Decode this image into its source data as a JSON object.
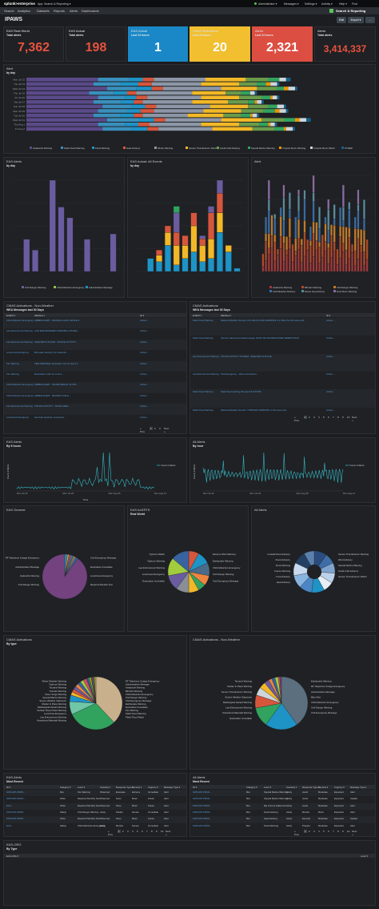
{
  "topbar": {
    "logo": "splunk>enterprise",
    "app_menu": "App: Search & Reporting ▾",
    "user": "Administrator ▾",
    "messages": "Messages ▾",
    "settings": "Settings ▾",
    "activity": "Activity ▾",
    "help": "Help ▾",
    "find": "Find"
  },
  "nav": {
    "items": [
      "Search",
      "Analytics",
      "Datasets",
      "Reports",
      "Alerts",
      "Dashboards"
    ],
    "app_name": "Search & Reporting"
  },
  "dashboard": {
    "title": "IPAWS",
    "edit": "Edit",
    "export": "Export ▾",
    "more": "..."
  },
  "kpis": [
    {
      "title": "EAS Real World",
      "sub": "Total alerts",
      "value": "7,362",
      "color": "#e8523f",
      "bg": ""
    },
    {
      "title": "EAS Actual",
      "sub": "Total alerts",
      "value": "198",
      "color": "#e8523f",
      "bg": ""
    },
    {
      "title": "EAS Actual",
      "sub": "Last 24 hours",
      "value": "1",
      "color": "#ffffff",
      "bg": "#1a88c7"
    },
    {
      "title": "CMAS Activations",
      "sub": "Last 24 hours",
      "value": "20",
      "color": "#ffffff",
      "bg": "#f1bf2f"
    },
    {
      "title": "Alerts",
      "sub": "Last 24 hours",
      "value": "2,321",
      "color": "#ffffff",
      "bg": "#dc4e41"
    },
    {
      "title": "Alerts",
      "sub": "Total alerts",
      "value": "3,414,337",
      "color": "#e8523f",
      "bg": ""
    }
  ],
  "alert_panel": {
    "title": "Alert",
    "sub": "by day",
    "legend": [
      "Avalanche Warning",
      "Flash Flood Warning",
      "Flood Warning",
      "Heat Advisory",
      "Winter Warning",
      "Severe Thunderstorm Warning",
      "Small Craft Advisory",
      "Special Marine Warning",
      "Tropical Storm Warning",
      "Tropical Storm Watch",
      "OTHER"
    ],
    "days": [
      "Mon Jul 22",
      "Tue Jul 23",
      "Wed Jul 24",
      "Thu Jul 25",
      "Fri Jul 26",
      "Sat Jul 27",
      "Sun Jul 28",
      "Mon Jul 29",
      "Tue Jul 30",
      "Wed Jul 31",
      "Thu Aug 1",
      "Fri Aug 2"
    ]
  },
  "eas_alerts_panel": {
    "title": "EAS Alerts",
    "sub": "by day",
    "legend": [
      "Civil Danger Warning",
      "Child Abduction Emergency",
      "Administrative Message"
    ]
  },
  "eas_all_events_panel": {
    "title": "EAS Actual: All Events",
    "sub": "by day"
  },
  "alert2_panel": {
    "title": "Alert",
    "legend": [
      "Avalanche Warning",
      "Blizzard Warning",
      "Civil Danger Warning",
      "Cold Weather Advisory",
      "Dense Fog Advisory",
      "Dust Storm Warning"
    ]
  },
  "cmas_nonweather_table": {
    "title": "CMAS Activations - Non-Weather",
    "sub": "WEA Messages last 30 Days",
    "columns": [
      "EVENT ▾",
      "WEAText ▾",
      "ID ▾"
    ],
    "rows": [
      [
        "Child Abduction Emergency",
        "AMBER ALERT - MISSING CHILD, DETAILS...",
        "Amber-..."
      ],
      [
        "Law Enforcement Warning",
        "LAW ENFORCEMENT WARNING ISSUED...",
        "Amber-..."
      ],
      [
        "Law Enforcement Warning",
        "SHELTER IN PLACE - POLICE ACTIVITY...",
        "Amber-..."
      ],
      [
        "Local Area Emergency",
        "Boil water advisory for residents...",
        "Amber-..."
      ],
      [
        "Fire Warning",
        "FIRE WARNING: Evacuate now via Hwy 12...",
        "Amber-..."
      ],
      [
        "Fire Warning",
        "Evacuation order for zone 4...",
        "Amber-..."
      ],
      [
        "Child Abduction Emergency",
        "AMBER ALERT - SILVER SEDAN, PLATE...",
        "Amber-..."
      ],
      [
        "Child Abduction Emergency",
        "AMBER ALERT - MISSING CHILD...",
        "Amber-..."
      ],
      [
        "Law Enforcement Warning",
        "POLICE ACTIVITY - AVOID AREA...",
        "Amber-..."
      ],
      [
        "Local Area Emergency",
        "Gas leak reported, avoid area...",
        "Amber-..."
      ]
    ],
    "pager": [
      "« Prev",
      "1",
      "2",
      "3",
      "Next »"
    ]
  },
  "cmas_table": {
    "title": "CMAS Activations",
    "sub": "WEA Messages last 30 Days",
    "columns": [
      "EVENT ▾",
      "WEAText ▾",
      "ID ▾"
    ],
    "rows": [
      [
        "Flash Flood Warning",
        "National Weather Service: A FLASH FLOOD WARNING is in effect for this area until...",
        "Amber-..."
      ],
      [
        "Flash Flood Warning",
        "Servicio Nacional de Meteorologia: AVISO DE INUNDACIONES REPENTINAS...",
        "Amber-..."
      ],
      [
        "Law Enforcement Warning",
        "POLICE ACTIVITY IN AREA - SHELTER IN PLACE...",
        "Amber-..."
      ],
      [
        "Law Enforcement Warning",
        "Civil Emergency - follow instructions...",
        "Amber-..."
      ],
      [
        "Flash Flood Warning",
        "Flash flood warning this area till 9:00 PM...",
        "Amber-..."
      ],
      [
        "Flash Flood Warning",
        "National Weather Service: TORNADO WARNING in this area until...",
        "Amber-..."
      ]
    ],
    "pager": [
      "« Prev",
      "1",
      "2",
      "3",
      "4",
      "5",
      "6",
      "7",
      "8",
      "9",
      "10",
      "Next »"
    ]
  },
  "eas_alerts_time": {
    "title": "EAS Alerts",
    "sub": "By 6 hours",
    "legend": "Count of Alerts",
    "ylabel": "Count of Alerts",
    "xlabel": "Time",
    "xticks": [
      "Mon Jul 22\n2019",
      "Mon Jul 29",
      "Mon Aug 05",
      "Mon Aug 12"
    ]
  },
  "all_alerts_time": {
    "title": "All Alerts",
    "sub": "By hour",
    "legend": "Count of Alerts",
    "ylabel": "Count of Alerts",
    "xticks": [
      "Mon Jul 22\n2019",
      "Mon Jul 29",
      "Mon Aug 05",
      "Mon Aug 12"
    ]
  },
  "eas_general_pie": {
    "title": "EAS General",
    "labels": [
      "RF Telephone Outage Emergency",
      "Administrative Message",
      "Avalanche Warning",
      "Civil Danger Warning",
      "Civil Emergency Message",
      "Evacuation Immediate",
      "Local Area Emergency",
      "Required Monthly Test"
    ]
  },
  "eas_alerts_pie": {
    "title": "EAS ALERTS",
    "sub": "Real World",
    "labels": [
      "Typhoon Watch",
      "Typhoon Warning",
      "Law Enforcement Warning",
      "Local Area Emergency",
      "Evacuation Immediate",
      "Extreme Wind Warning",
      "Earthquake Warning",
      "Child Abduction Emergency",
      "Civil Danger Warning",
      "Civil Emergency Message"
    ]
  },
  "all_alerts_pie": {
    "title": "All Alerts",
    "labels": [
      "Coastal Flood Advisory",
      "Flood Advisory",
      "Flood Warning",
      "Freeze Warning",
      "Frost Advisory",
      "Heat Advisory",
      "Severe Thunderstorm Warning",
      "Wind Advisory",
      "Special Marine Warning",
      "Small Craft Advisory",
      "Severe Thunderstorm Watch"
    ]
  },
  "cmas_type_pie": {
    "title": "CMAS Activations",
    "sub": "By type",
    "labels": [
      "Winter Weather Warning",
      "Typhoon Warning",
      "Tsunami Warning",
      "Tornado Warning",
      "Storm Surge Warning",
      "Special Marine Warning",
      "Severe Weather Statement",
      "Shelter In Place Warning",
      "Radiological Hazard Warning",
      "Nuclear Power Plant Warning",
      "Local Area Emergency",
      "Law Enforcement Warning",
      "Hazardous Materials Warning",
      "RF Telephone Outage Emergency",
      "Administrative Message",
      "Avalanche Warning",
      "Blizzard Warning",
      "Child Abduction Emergency",
      "Civil Danger Warning",
      "Civil Emergency Message",
      "Earthquake Warning",
      "Evacuation Immediate",
      "Fire Warning",
      "Flash Flood Warning",
      "Flash Flood Watch"
    ]
  },
  "cmas_nonweather_pie": {
    "title": "CMAS Activations - Non-Weather",
    "labels": [
      "Tsunami Warning",
      "Shelter In Place Warning",
      "Severe Thunderstorm Warning",
      "Severe Weather Statement",
      "Radiological Hazard Warning",
      "Law Enforcement Warning",
      "Hazardous Materials Warning",
      "Evacuation Immediate",
      "Earthquake Warning",
      "RF Telephone Outage Emergency",
      "Administrative Message",
      "Blue Alert",
      "Child Abduction Emergency",
      "Civil Danger Warning",
      "Civil Emergency Message"
    ]
  },
  "eas_alerts_table": {
    "title": "EAS Alerts",
    "sub": "Most Recent",
    "columns": [
      "ID ▾",
      "Category ▾",
      "event ▾",
      "Certainty ▾",
      "Response Type ▾",
      "Severity ▾",
      "Urgency ▾",
      "Message Type ▾"
    ],
    "rows": [
      [
        "NWS-IDP-PROD-...",
        "Met",
        "Fire Warning",
        "Observed",
        "Evacuate",
        "Extreme",
        "Immediate",
        "Alert"
      ],
      [
        "NWS-IDP-PROD-...",
        "Other",
        "Required Monthly Test",
        "Observed",
        "None",
        "Minor",
        "Future",
        "Alert"
      ],
      [
        "EAS-...",
        "Other",
        "Required Monthly Test",
        "Observed",
        "None",
        "Minor",
        "Future",
        "Alert"
      ],
      [
        "NWS-IDP-PROD-...",
        "Safety",
        "Civil Danger Warning",
        "Likely",
        "Shelter",
        "Severe",
        "Immediate",
        "Alert"
      ],
      [
        "NWS-IDP-PROD-...",
        "Other",
        "Required Monthly Test",
        "Observed",
        "None",
        "Minor",
        "Future",
        "Alert"
      ],
      [
        "EAS-...",
        "Safety",
        "Child Abduction Emergency",
        "Likely",
        "Monitor",
        "Severe",
        "Immediate",
        "Alert"
      ]
    ],
    "pager": [
      "« Prev",
      "1",
      "2",
      "3",
      "4",
      "5",
      "6",
      "7",
      "8",
      "9",
      "10",
      "Next »"
    ]
  },
  "all_alerts_table": {
    "title": "All Alerts",
    "sub": "Most Recent",
    "columns": [
      "ID ▾",
      "Category ▾",
      "event ▾",
      "Certainty ▾",
      "Response Type ▾",
      "Severity ▾",
      "Urgency ▾",
      "Message Type ▾"
    ],
    "rows": [
      [
        "NWS-IDP-PROD-...",
        "Met",
        "Special Marine Warning",
        "Likely",
        "Avoid",
        "Moderate",
        "Expected",
        "Alert"
      ],
      [
        "NWS-IDP-PROD-...",
        "Met",
        "Special Marine Warning",
        "Likely",
        "Avoid",
        "Moderate",
        "Expected",
        "Update"
      ],
      [
        "NWS-IDP-PROD-...",
        "Met",
        "Rip Current Statement",
        "Likely",
        "Avoid",
        "Moderate",
        "Expected",
        "Alert"
      ],
      [
        "NWS-IDP-PROD-...",
        "Met",
        "Flood Advisory",
        "Likely",
        "Monitor",
        "Minor",
        "Expected",
        "Alert"
      ],
      [
        "NWS-IDP-PROD-...",
        "Met",
        "Heat Advisory",
        "Likely",
        "Execute",
        "Moderate",
        "Expected",
        "Update"
      ],
      [
        "NWS-IDP-PROD-...",
        "Met",
        "Flood Warning",
        "Likely",
        "Prepare",
        "Moderate",
        "Expected",
        "Alert"
      ]
    ],
    "pager": [
      "« Prev",
      "1",
      "2",
      "3",
      "4",
      "5",
      "6",
      "7",
      "8",
      "9",
      "10",
      "Next »"
    ]
  },
  "eas_orig": {
    "title": "EAS-ORG",
    "sub": "By Type",
    "col": "EAS-ORG ▾",
    "count_col": "count ▾"
  }
}
